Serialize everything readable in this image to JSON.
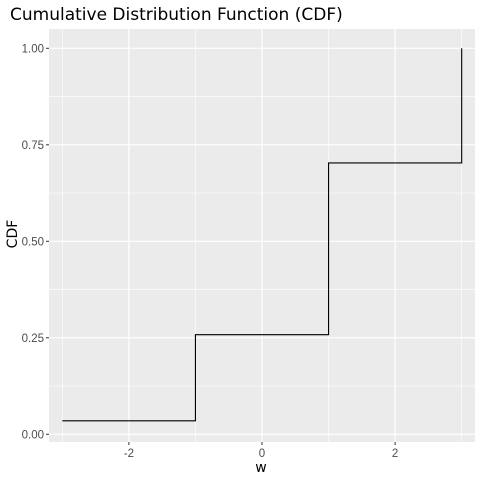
{
  "chart_data": {
    "type": "line",
    "step": true,
    "title": "Cumulative Distribution Function (CDF)",
    "xlabel": "w",
    "ylabel": "CDF",
    "xlim": [
      -3.2,
      3.2
    ],
    "ylim": [
      -0.02,
      1.05
    ],
    "x_ticks": [
      -2,
      0,
      2
    ],
    "x_tick_labels": [
      "-2",
      "0",
      "2"
    ],
    "y_ticks": [
      0,
      0.25,
      0.5,
      0.75,
      1.0
    ],
    "y_tick_labels": [
      "0.00",
      "0.25",
      "0.50",
      "0.75",
      "1.00"
    ],
    "grid": true,
    "legend": "none",
    "series": [
      {
        "x": [
          -3,
          -1,
          -1,
          1,
          1,
          3,
          3
        ],
        "y": [
          0.035,
          0.035,
          0.258,
          0.258,
          0.703,
          0.703,
          1.0
        ]
      }
    ],
    "colors": {
      "panel": "#ebebeb",
      "grid": "#ffffff",
      "line": "#000000",
      "tick": "#4d4d4d"
    }
  }
}
